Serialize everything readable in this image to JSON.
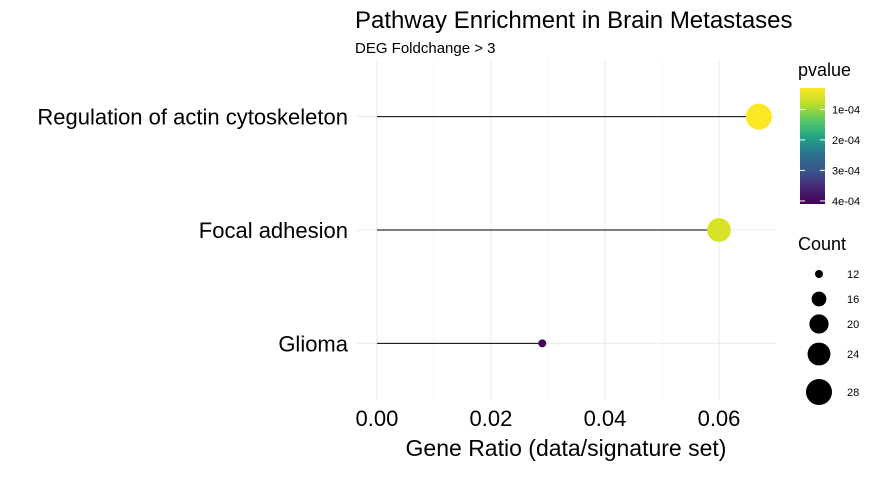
{
  "chart_data": {
    "type": "scatter",
    "title": "Pathway Enrichment in Brain Metastases",
    "subtitle": "DEG Foldchange > 3",
    "xlabel": "Gene Ratio (data/signature set)",
    "ylabel": "",
    "xlim": [
      -0.0035,
      0.07
    ],
    "xticks": [
      "0.00",
      "0.02",
      "0.04",
      "0.06"
    ],
    "xtick_values": [
      0,
      0.02,
      0.04,
      0.06
    ],
    "grid": true,
    "categories": [
      "Regulation of actin cytoskeleton",
      "Focal adhesion",
      "Glioma"
    ],
    "points": [
      {
        "pathway": "Regulation of actin cytoskeleton",
        "gene_ratio": 0.067,
        "pvalue": 3e-05,
        "count": 28
      },
      {
        "pathway": "Focal adhesion",
        "gene_ratio": 0.06,
        "pvalue": 6e-05,
        "count": 25
      },
      {
        "pathway": "Glioma",
        "gene_ratio": 0.029,
        "pvalue": 0.00041,
        "count": 12
      }
    ],
    "color_legend": {
      "title": "pvalue",
      "labels": [
        "1e-04",
        "2e-04",
        "3e-04",
        "4e-04"
      ],
      "values": [
        0.0001,
        0.0002,
        0.0003,
        0.0004
      ],
      "range": [
        3e-05,
        0.00041
      ],
      "palette": [
        "#FDE725",
        "#B8DE29",
        "#55C667",
        "#20A387",
        "#2D708E",
        "#39568C",
        "#482677",
        "#440154"
      ]
    },
    "size_legend": {
      "title": "Count",
      "values": [
        12,
        16,
        20,
        24,
        28
      ],
      "labels": [
        "12",
        "16",
        "20",
        "24",
        "28"
      ]
    },
    "stem_color": "#000000",
    "legend_position": "right"
  }
}
